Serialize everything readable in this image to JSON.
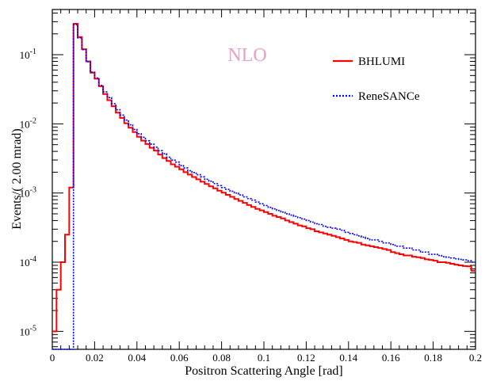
{
  "chart_data": {
    "type": "line",
    "annotation": "NLO",
    "xlabel": "Positron Scattering Angle [rad]",
    "ylabel": "Events/( 2.00 mrad)",
    "xlim": [
      0,
      0.2
    ],
    "ylim": [
      5.5e-06,
      0.45
    ],
    "yscale": "log",
    "bin_width": 0.002,
    "x_ticks": [
      0,
      0.02,
      0.04,
      0.06,
      0.08,
      0.1,
      0.12,
      0.14,
      0.16,
      0.18,
      0.2
    ],
    "x_tick_labels": [
      "0",
      "0.02",
      "0.04",
      "0.06",
      "0.08",
      "0.1",
      "0.12",
      "0.14",
      "0.16",
      "0.18",
      "0.2"
    ],
    "y_ticks": [
      1e-05,
      0.0001,
      0.001,
      0.01,
      0.1
    ],
    "y_tick_labels": [
      [
        "10",
        "-5"
      ],
      [
        "10",
        "-4"
      ],
      [
        "10",
        "-3"
      ],
      [
        "10",
        "-2"
      ],
      [
        "10",
        "-1"
      ]
    ],
    "legend_position": "top-right",
    "colors": {
      "BHLUMI": "#ff0000",
      "ReneSANCe": "#0000ff",
      "annotation": "#e8a0c8"
    },
    "series": [
      {
        "name": "BHLUMI",
        "style": "solid",
        "bin_edges_start": 0.0,
        "values": [
          1e-05,
          4e-05,
          0.0001,
          0.00025,
          0.0012,
          0.28,
          0.18,
          0.12,
          0.08,
          0.055,
          0.045,
          0.035,
          0.027,
          0.022,
          0.018,
          0.0145,
          0.0122,
          0.0102,
          0.0088,
          0.0076,
          0.0065,
          0.0057,
          0.0051,
          0.0045,
          0.0041,
          0.0036,
          0.0032,
          0.0029,
          0.0026,
          0.0024,
          0.0022,
          0.002,
          0.00185,
          0.0017,
          0.00158,
          0.00146,
          0.00135,
          0.00125,
          0.00117,
          0.00108,
          0.00101,
          0.00094,
          0.00088,
          0.00082,
          0.00077,
          0.00072,
          0.00067,
          0.00063,
          0.00059,
          0.00056,
          0.00053,
          0.0005,
          0.00047,
          0.00045,
          0.00043,
          0.0004,
          0.00038,
          0.00036,
          0.00034,
          0.00033,
          0.00031,
          0.0003,
          0.00028,
          0.00027,
          0.00026,
          0.00025,
          0.00024,
          0.00023,
          0.00022,
          0.00021,
          0.0002,
          0.000195,
          0.00019,
          0.00018,
          0.000175,
          0.00017,
          0.000165,
          0.00016,
          0.000155,
          0.00015,
          0.00014,
          0.000135,
          0.00013,
          0.000125,
          0.000125,
          0.00012,
          0.000118,
          0.000115,
          0.00011,
          0.000108,
          0.000105,
          0.0001,
          0.0001,
          9.8e-05,
          9.5e-05,
          9.2e-05,
          9e-05,
          8.8e-05,
          8.7e-05,
          7.5e-05
        ]
      },
      {
        "name": "ReneSANCe",
        "style": "dotted",
        "bin_edges_start": 0.0,
        "values": [
          5.5e-06,
          5.5e-06,
          5.5e-06,
          5.5e-06,
          5.5e-06,
          0.27,
          0.175,
          0.118,
          0.079,
          0.056,
          0.046,
          0.036,
          0.029,
          0.024,
          0.0196,
          0.016,
          0.0134,
          0.0113,
          0.0097,
          0.0083,
          0.0072,
          0.0064,
          0.0057,
          0.0051,
          0.0046,
          0.0041,
          0.0037,
          0.0033,
          0.003,
          0.0028,
          0.0025,
          0.0023,
          0.0021,
          0.00198,
          0.00184,
          0.00171,
          0.00158,
          0.00148,
          0.00137,
          0.00128,
          0.0012,
          0.00113,
          0.00106,
          0.001,
          0.00094,
          0.00088,
          0.00083,
          0.00079,
          0.00074,
          0.0007,
          0.00066,
          0.00062,
          0.00059,
          0.00056,
          0.00053,
          0.0005,
          0.00048,
          0.00046,
          0.00044,
          0.00042,
          0.0004,
          0.00038,
          0.00036,
          0.00035,
          0.00033,
          0.00032,
          0.00031,
          0.0003,
          0.00029,
          0.00027,
          0.00026,
          0.00025,
          0.00024,
          0.00023,
          0.00022,
          0.00021,
          0.00021,
          0.0002,
          0.00019,
          0.00019,
          0.00018,
          0.00017,
          0.00017,
          0.00016,
          0.00016,
          0.00015,
          0.00015,
          0.00014,
          0.00014,
          0.00013,
          0.00013,
          0.000125,
          0.00012,
          0.000118,
          0.000115,
          0.000112,
          0.00011,
          0.000108,
          0.000105,
          0.0001
        ]
      }
    ]
  }
}
